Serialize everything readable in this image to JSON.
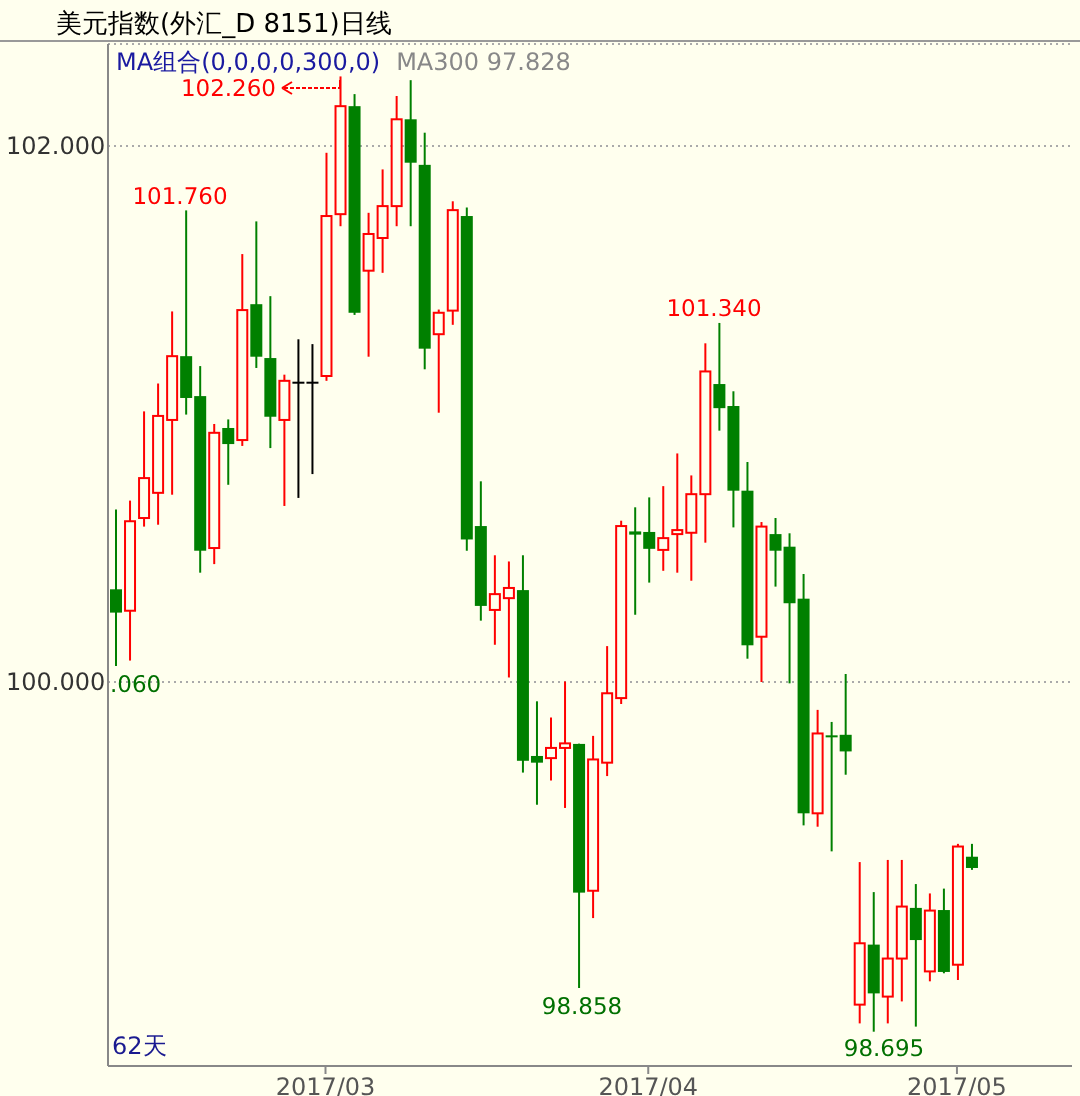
{
  "chart_data": {
    "type": "candlestick",
    "title": "美元指数(外汇_D 8151)日线",
    "subtitle": "MA组合(0,0,0,0,300,0)",
    "categories": [
      null,
      null,
      null,
      null,
      null,
      null,
      null,
      null,
      null,
      null,
      null,
      null,
      null,
      null,
      null,
      "2017/03",
      null,
      null,
      null,
      null,
      null,
      null,
      null,
      null,
      null,
      null,
      null,
      null,
      null,
      null,
      null,
      null,
      null,
      null,
      null,
      null,
      null,
      null,
      "2017/04",
      null,
      null,
      null,
      null,
      null,
      null,
      null,
      null,
      null,
      null,
      null,
      null,
      null,
      null,
      null,
      null,
      null,
      null,
      null,
      null,
      null,
      "2017/05",
      null
    ],
    "ohlc": [
      [
        100.346,
        100.644,
        100.06,
        100.259
      ],
      [
        100.266,
        100.677,
        100.08,
        100.6
      ],
      [
        100.612,
        101.01,
        100.58,
        100.761
      ],
      [
        100.706,
        101.114,
        100.587,
        100.993
      ],
      [
        100.978,
        101.383,
        100.699,
        101.216
      ],
      [
        101.216,
        101.76,
        100.998,
        101.06
      ],
      [
        101.067,
        101.179,
        100.408,
        100.49
      ],
      [
        100.5,
        100.963,
        100.44,
        100.93
      ],
      [
        100.948,
        100.98,
        100.736,
        100.888
      ],
      [
        100.903,
        101.597,
        100.881,
        101.388
      ],
      [
        101.41,
        101.719,
        101.172,
        101.214
      ],
      [
        101.209,
        101.44,
        100.873,
        100.99
      ],
      [
        100.978,
        101.147,
        100.657,
        101.124
      ],
      [
        101.117,
        101.279,
        100.687,
        101.117
      ],
      [
        101.117,
        101.261,
        100.776,
        101.117
      ],
      [
        101.142,
        101.975,
        101.124,
        101.739
      ],
      [
        101.746,
        102.26,
        101.701,
        102.149
      ],
      [
        102.149,
        102.194,
        101.37,
        101.378
      ],
      [
        101.535,
        101.751,
        101.214,
        101.672
      ],
      [
        101.657,
        101.913,
        101.527,
        101.776
      ],
      [
        101.776,
        102.187,
        101.701,
        102.1
      ],
      [
        102.1,
        102.246,
        101.701,
        101.938
      ],
      [
        101.93,
        102.05,
        101.167,
        101.244
      ],
      [
        101.298,
        101.39,
        101.005,
        101.378
      ],
      [
        101.386,
        101.794,
        101.333,
        101.761
      ],
      [
        101.739,
        101.771,
        100.49,
        100.532
      ],
      [
        100.582,
        100.749,
        100.229,
        100.284
      ],
      [
        100.269,
        100.473,
        100.139,
        100.328
      ],
      [
        100.313,
        100.45,
        100.017,
        100.351
      ],
      [
        100.343,
        100.473,
        99.662,
        99.706
      ],
      [
        99.724,
        99.928,
        99.542,
        99.699
      ],
      [
        99.716,
        99.868,
        99.632,
        99.754
      ],
      [
        99.754,
        100.002,
        99.53,
        99.771
      ],
      [
        99.769,
        99.77,
        98.858,
        99.214
      ],
      [
        99.221,
        99.799,
        99.119,
        99.711
      ],
      [
        99.699,
        100.134,
        99.649,
        99.958
      ],
      [
        99.94,
        100.602,
        99.918,
        100.582
      ],
      [
        100.562,
        100.652,
        100.251,
        100.55
      ],
      [
        100.56,
        100.689,
        100.371,
        100.497
      ],
      [
        100.493,
        100.731,
        100.415,
        100.537
      ],
      [
        100.552,
        100.853,
        100.408,
        100.567
      ],
      [
        100.557,
        100.771,
        100.378,
        100.701
      ],
      [
        100.701,
        101.264,
        100.52,
        101.159
      ],
      [
        101.112,
        101.34,
        100.938,
        101.022
      ],
      [
        101.03,
        101.085,
        100.577,
        100.714
      ],
      [
        100.714,
        100.821,
        100.087,
        100.137
      ],
      [
        100.169,
        100.597,
        100.0,
        100.58
      ],
      [
        100.552,
        100.612,
        100.356,
        100.49
      ],
      [
        100.505,
        100.555,
        99.995,
        100.294
      ],
      [
        100.311,
        100.403,
        99.465,
        99.51
      ],
      [
        99.51,
        99.896,
        99.46,
        99.808
      ],
      [
        99.801,
        99.851,
        99.368,
        99.795
      ],
      [
        99.803,
        100.03,
        99.654,
        99.741
      ],
      [
        98.796,
        99.328,
        98.726,
        99.025
      ],
      [
        99.02,
        99.216,
        98.695,
        98.838
      ],
      [
        98.826,
        99.336,
        98.726,
        98.968
      ],
      [
        98.968,
        99.336,
        98.808,
        99.162
      ],
      [
        99.157,
        99.246,
        98.714,
        99.037
      ],
      [
        98.92,
        99.211,
        98.883,
        99.147
      ],
      [
        99.149,
        99.229,
        98.913,
        98.918
      ],
      [
        98.945,
        99.396,
        98.888,
        99.386
      ],
      [
        99.348,
        99.396,
        99.299,
        99.306
      ]
    ],
    "colors": [
      "#008000",
      "#ff0000",
      "#ff0000",
      "#ff0000",
      "#ff0000",
      "#008000",
      "#008000",
      "#ff0000",
      "#008000",
      "#ff0000",
      "#008000",
      "#008000",
      "#ff0000",
      "#000000",
      "#000000",
      "#ff0000",
      "#ff0000",
      "#008000",
      "#ff0000",
      "#ff0000",
      "#ff0000",
      "#008000",
      "#008000",
      "#ff0000",
      "#ff0000",
      "#008000",
      "#008000",
      "#ff0000",
      "#ff0000",
      "#008000",
      "#008000",
      "#ff0000",
      "#ff0000",
      "#008000",
      "#ff0000",
      "#ff0000",
      "#ff0000",
      "#008000",
      "#008000",
      "#ff0000",
      "#ff0000",
      "#ff0000",
      "#ff0000",
      "#008000",
      "#008000",
      "#008000",
      "#ff0000",
      "#008000",
      "#008000",
      "#008000",
      "#ff0000",
      "#008000",
      "#008000",
      "#ff0000",
      "#008000",
      "#ff0000",
      "#ff0000",
      "#008000",
      "#ff0000",
      "#008000",
      "#ff0000",
      "#008000"
    ],
    "ylim": [
      98.567,
      102.381
    ],
    "yticks": [
      {
        "value": 100,
        "label": "100.000"
      },
      {
        "value": 102,
        "label": "102.000"
      }
    ],
    "grid": "y",
    "annotations": [
      "MA300 97.828",
      "62天",
      "102.260",
      "101.760",
      "101.340",
      "98.858",
      "98.695",
      ".060"
    ]
  }
}
